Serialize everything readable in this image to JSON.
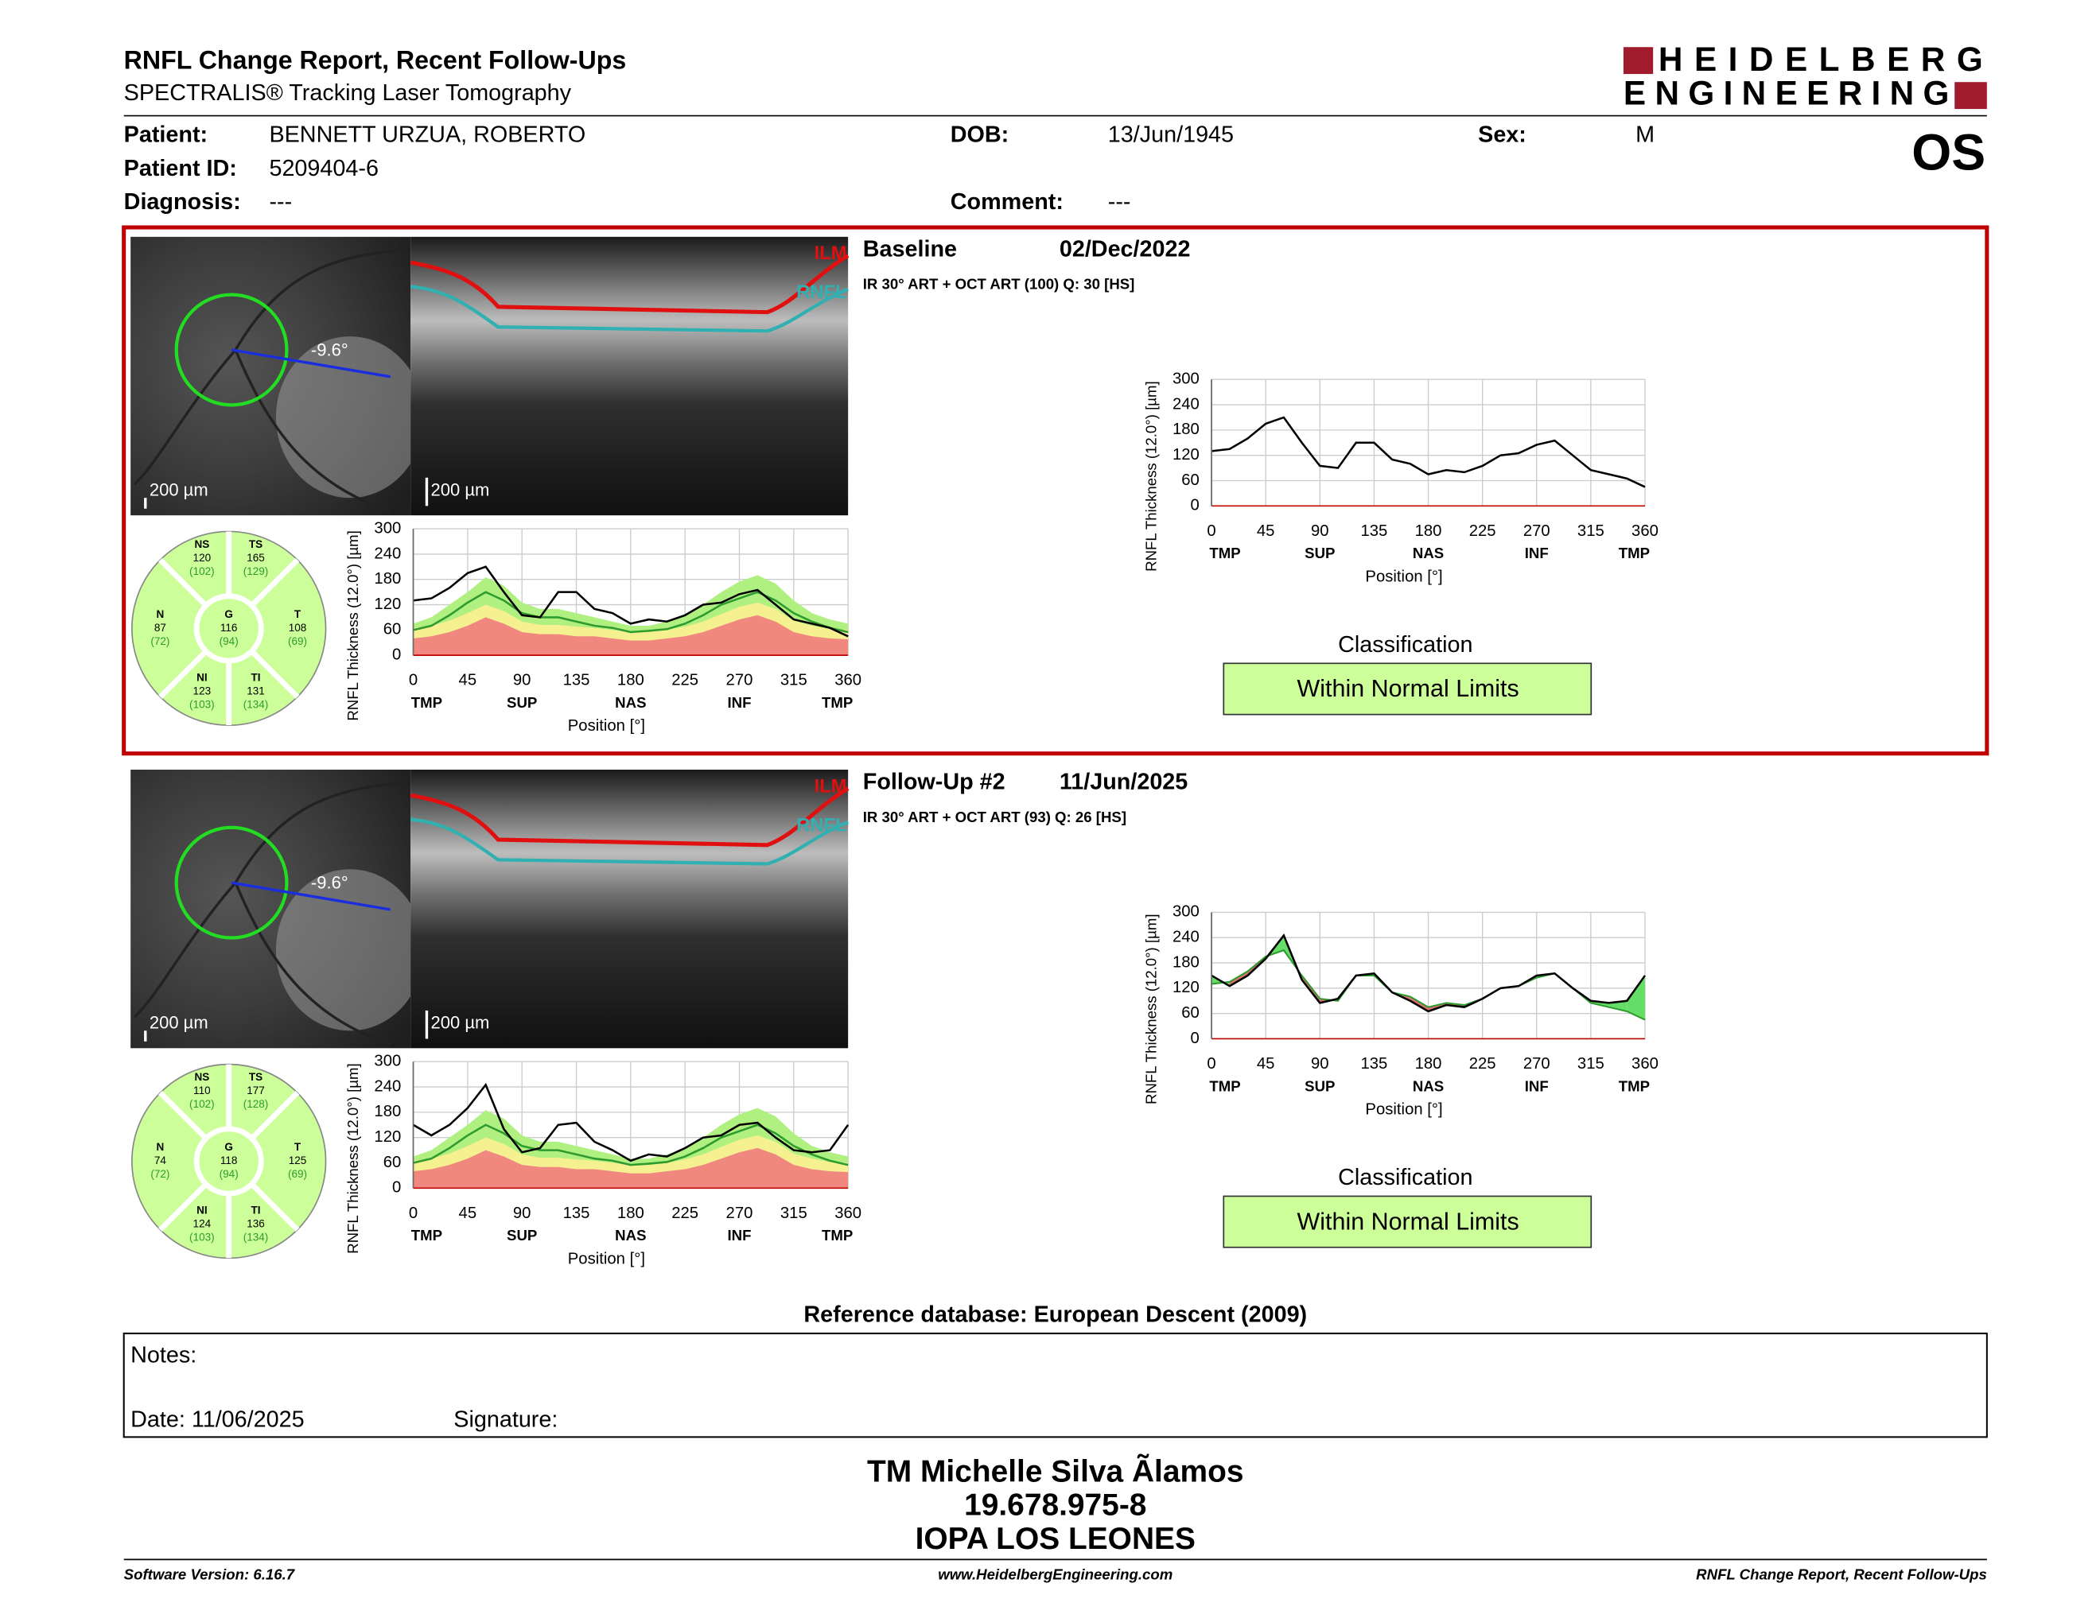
{
  "header": {
    "title": "RNFL Change Report, Recent Follow-Ups",
    "subtitle": "SPECTRALIS® Tracking Laser Tomography",
    "logo_line1": "HEIDELBERG",
    "logo_line2": "ENGINEERING",
    "eye": "OS"
  },
  "patient": [
    {
      "label": "Patient:",
      "value": "BENNETT URZUA, ROBERTO"
    },
    {
      "label": "Patient ID:",
      "value": "5209404-6"
    },
    {
      "label": "Diagnosis:",
      "value": "---"
    },
    {
      "label": "DOB:",
      "value": "13/Jun/1945"
    },
    {
      "label": "Comment:",
      "value": "---"
    },
    {
      "label": "Sex:",
      "value": "M"
    }
  ],
  "exams": [
    {
      "title": "Baseline",
      "date": "02/Dec/2022",
      "info": "IR 30° ART + OCT ART (100) Q: 30 [HS]",
      "scale": "200 µm",
      "angle": "-9.6°",
      "layers": [
        "ILM",
        "RNFL"
      ],
      "classification_title": "Classification",
      "classification": "Within Normal Limits",
      "sectors": [
        {
          "name": "NS",
          "value": 120,
          "normal": "(102)"
        },
        {
          "name": "TS",
          "value": 165,
          "normal": "(129)"
        },
        {
          "name": "N",
          "value": 87,
          "normal": "(72)"
        },
        {
          "name": "G",
          "value": 116,
          "normal": "(94)"
        },
        {
          "name": "T",
          "value": 108,
          "normal": "(69)"
        },
        {
          "name": "NI",
          "value": 123,
          "normal": "(103)"
        },
        {
          "name": "TI",
          "value": 131,
          "normal": "(134)"
        }
      ]
    },
    {
      "title": "Follow-Up #2",
      "date": "11/Jun/2025",
      "info": "IR 30° ART + OCT ART (93) Q: 26 [HS]",
      "scale": "200 µm",
      "angle": "-9.6°",
      "layers": [
        "ILM",
        "RNFL"
      ],
      "classification_title": "Classification",
      "classification": "Within Normal Limits",
      "sectors": [
        {
          "name": "NS",
          "value": 110,
          "normal": "(102)"
        },
        {
          "name": "TS",
          "value": 177,
          "normal": "(128)"
        },
        {
          "name": "N",
          "value": 74,
          "normal": "(72)"
        },
        {
          "name": "G",
          "value": 118,
          "normal": "(94)"
        },
        {
          "name": "T",
          "value": 125,
          "normal": "(69)"
        },
        {
          "name": "NI",
          "value": 124,
          "normal": "(103)"
        },
        {
          "name": "TI",
          "value": 136,
          "normal": "(134)"
        }
      ]
    }
  ],
  "chart_data": [
    {
      "type": "line",
      "xlabel": "Position [°]",
      "ylabel": "RNFL Thickness (12.0°) [µm]",
      "x": [
        0,
        15,
        30,
        45,
        60,
        75,
        90,
        105,
        120,
        135,
        150,
        165,
        180,
        195,
        210,
        225,
        240,
        255,
        270,
        285,
        300,
        315,
        330,
        345,
        360
      ],
      "xlim": [
        0,
        360
      ],
      "xticks": [
        0,
        45,
        90,
        135,
        180,
        225,
        270,
        315,
        360
      ],
      "ylim": [
        0,
        300
      ],
      "yticks": [
        0,
        60,
        120,
        180,
        240,
        300
      ],
      "sector_ticks": [
        {
          "value": 0,
          "label": "TMP"
        },
        {
          "value": 90,
          "label": "SUP"
        },
        {
          "value": 180,
          "label": "NAS"
        },
        {
          "value": 270,
          "label": "INF"
        },
        {
          "value": 360,
          "label": "TMP"
        }
      ],
      "grid": true,
      "series": [
        {
          "style": "area",
          "color": "#b0f080",
          "values": [
            75,
            90,
            120,
            150,
            185,
            165,
            125,
            110,
            110,
            100,
            90,
            80,
            70,
            70,
            80,
            95,
            120,
            150,
            175,
            190,
            170,
            130,
            100,
            85,
            75
          ]
        },
        {
          "style": "area",
          "color": "#f5f090",
          "values": [
            65,
            70,
            82,
            100,
            120,
            105,
            80,
            72,
            72,
            68,
            65,
            60,
            55,
            55,
            60,
            68,
            80,
            98,
            115,
            125,
            110,
            82,
            70,
            62,
            60
          ]
        },
        {
          "style": "area",
          "color": "#f08880",
          "values": [
            40,
            45,
            55,
            70,
            90,
            75,
            55,
            50,
            50,
            45,
            45,
            40,
            35,
            35,
            40,
            45,
            55,
            70,
            85,
            95,
            80,
            55,
            45,
            40,
            38
          ]
        },
        {
          "style": "line",
          "color": "#2e9b2e",
          "values": [
            60,
            70,
            95,
            125,
            150,
            130,
            100,
            90,
            90,
            80,
            70,
            65,
            55,
            58,
            62,
            75,
            95,
            120,
            135,
            150,
            130,
            100,
            80,
            65,
            55
          ]
        },
        {
          "style": "line",
          "color": "#000000",
          "values": [
            130,
            135,
            160,
            195,
            210,
            150,
            95,
            90,
            150,
            150,
            110,
            100,
            75,
            85,
            80,
            95,
            120,
            125,
            145,
            155,
            120,
            85,
            75,
            65,
            45
          ]
        }
      ]
    },
    {
      "type": "line",
      "xlabel": "Position [°]",
      "ylabel": "RNFL Thickness (12.0°) [µm]",
      "x": [
        0,
        15,
        30,
        45,
        60,
        75,
        90,
        105,
        120,
        135,
        150,
        165,
        180,
        195,
        210,
        225,
        240,
        255,
        270,
        285,
        300,
        315,
        330,
        345,
        360
      ],
      "xlim": [
        0,
        360
      ],
      "xticks": [
        0,
        45,
        90,
        135,
        180,
        225,
        270,
        315,
        360
      ],
      "ylim": [
        0,
        300
      ],
      "yticks": [
        0,
        60,
        120,
        180,
        240,
        300
      ],
      "sector_ticks": [
        {
          "value": 0,
          "label": "TMP"
        },
        {
          "value": 90,
          "label": "SUP"
        },
        {
          "value": 180,
          "label": "NAS"
        },
        {
          "value": 270,
          "label": "INF"
        },
        {
          "value": 360,
          "label": "TMP"
        }
      ],
      "grid": true,
      "series": [
        {
          "style": "line",
          "color": "#000000",
          "values": [
            130,
            135,
            160,
            195,
            210,
            150,
            95,
            90,
            150,
            150,
            110,
            100,
            75,
            85,
            80,
            95,
            120,
            125,
            145,
            155,
            120,
            85,
            75,
            65,
            45
          ]
        }
      ]
    },
    {
      "type": "line",
      "xlabel": "Position [°]",
      "ylabel": "RNFL Thickness (12.0°) [µm]",
      "x": [
        0,
        15,
        30,
        45,
        60,
        75,
        90,
        105,
        120,
        135,
        150,
        165,
        180,
        195,
        210,
        225,
        240,
        255,
        270,
        285,
        300,
        315,
        330,
        345,
        360
      ],
      "xlim": [
        0,
        360
      ],
      "xticks": [
        0,
        45,
        90,
        135,
        180,
        225,
        270,
        315,
        360
      ],
      "ylim": [
        0,
        300
      ],
      "yticks": [
        0,
        60,
        120,
        180,
        240,
        300
      ],
      "sector_ticks": [
        {
          "value": 0,
          "label": "TMP"
        },
        {
          "value": 90,
          "label": "SUP"
        },
        {
          "value": 180,
          "label": "NAS"
        },
        {
          "value": 270,
          "label": "INF"
        },
        {
          "value": 360,
          "label": "TMP"
        }
      ],
      "grid": true,
      "series": [
        {
          "style": "area",
          "color": "#b0f080",
          "values": [
            75,
            90,
            120,
            150,
            185,
            165,
            125,
            110,
            110,
            100,
            90,
            80,
            70,
            70,
            80,
            95,
            120,
            150,
            175,
            190,
            170,
            130,
            100,
            85,
            75
          ]
        },
        {
          "style": "area",
          "color": "#f5f090",
          "values": [
            65,
            70,
            82,
            100,
            120,
            105,
            80,
            72,
            72,
            68,
            65,
            60,
            55,
            55,
            60,
            68,
            80,
            98,
            115,
            125,
            110,
            82,
            70,
            62,
            60
          ]
        },
        {
          "style": "area",
          "color": "#f08880",
          "values": [
            40,
            45,
            55,
            70,
            90,
            75,
            55,
            50,
            50,
            45,
            45,
            40,
            35,
            35,
            40,
            45,
            55,
            70,
            85,
            95,
            80,
            55,
            45,
            40,
            38
          ]
        },
        {
          "style": "line",
          "color": "#2e9b2e",
          "values": [
            60,
            70,
            95,
            125,
            150,
            130,
            100,
            90,
            90,
            80,
            70,
            65,
            55,
            58,
            62,
            75,
            95,
            120,
            135,
            150,
            130,
            100,
            80,
            65,
            55
          ]
        },
        {
          "style": "line",
          "color": "#000000",
          "values": [
            150,
            125,
            150,
            190,
            245,
            140,
            85,
            95,
            150,
            155,
            110,
            90,
            65,
            80,
            75,
            95,
            120,
            125,
            150,
            155,
            120,
            90,
            85,
            90,
            150
          ]
        }
      ]
    },
    {
      "type": "line",
      "xlabel": "Position [°]",
      "ylabel": "RNFL Thickness (12.0°) [µm]",
      "x": [
        0,
        15,
        30,
        45,
        60,
        75,
        90,
        105,
        120,
        135,
        150,
        165,
        180,
        195,
        210,
        225,
        240,
        255,
        270,
        285,
        300,
        315,
        330,
        345,
        360
      ],
      "xlim": [
        0,
        360
      ],
      "xticks": [
        0,
        45,
        90,
        135,
        180,
        225,
        270,
        315,
        360
      ],
      "ylim": [
        0,
        300
      ],
      "yticks": [
        0,
        60,
        120,
        180,
        240,
        300
      ],
      "sector_ticks": [
        {
          "value": 0,
          "label": "TMP"
        },
        {
          "value": 90,
          "label": "SUP"
        },
        {
          "value": 180,
          "label": "NAS"
        },
        {
          "value": 270,
          "label": "INF"
        },
        {
          "value": 360,
          "label": "TMP"
        }
      ],
      "grid": true,
      "increase_color": "#66dd66",
      "decrease_color": "#e07070",
      "series": [
        {
          "style": "reference",
          "color": "#2e9b2e",
          "values": [
            130,
            135,
            160,
            195,
            210,
            150,
            95,
            90,
            150,
            150,
            110,
            100,
            75,
            85,
            80,
            95,
            120,
            125,
            145,
            155,
            120,
            85,
            75,
            65,
            45
          ]
        },
        {
          "style": "line",
          "color": "#000000",
          "values": [
            150,
            125,
            150,
            190,
            245,
            140,
            85,
            95,
            150,
            155,
            110,
            90,
            65,
            80,
            75,
            95,
            120,
            125,
            150,
            155,
            120,
            90,
            85,
            90,
            150
          ]
        }
      ]
    }
  ],
  "reference": "Reference database: European Descent (2009)",
  "notes": {
    "notes": "Notes:",
    "date": "Date: 11/06/2025",
    "signature": "Signature:"
  },
  "operator": [
    "TM Michelle Silva Ãlamos",
    "19.678.975-8",
    "IOPA LOS LEONES"
  ],
  "footer": {
    "left": "Software Version: 6.16.7",
    "center": "www.HeidelbergEngineering.com",
    "right": "RNFL Change Report, Recent Follow-Ups"
  }
}
